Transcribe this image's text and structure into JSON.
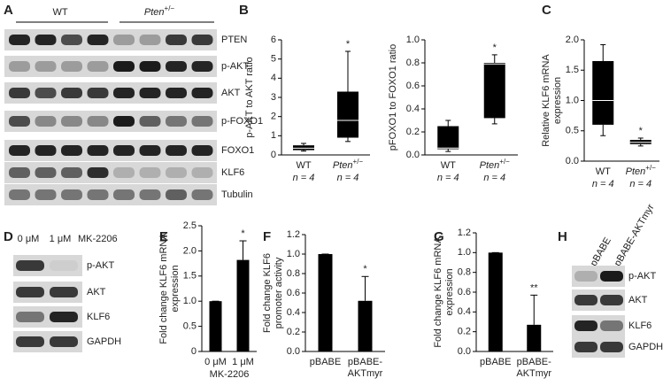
{
  "blots": [
    {
      "label": "A",
      "groups": [
        "WT",
        "Pten+/−"
      ],
      "rows": [
        "PTEN",
        "p-AKT",
        "AKT",
        "p-FOXO1",
        "FOXO1",
        "KLF6",
        "Tubulin"
      ]
    },
    {
      "label": "D",
      "groups": [
        "0 μM",
        "1 μM"
      ],
      "treatment": "MK-2206",
      "rows": [
        "p-AKT",
        "AKT",
        "KLF6",
        "GAPDH"
      ]
    },
    {
      "label": "H",
      "groups": [
        "pBABE",
        "pBABE-AKTmyr"
      ],
      "rows": [
        "p-AKT",
        "AKT",
        "KLF6",
        "GAPDH"
      ]
    }
  ],
  "chart_data": [
    {
      "type": "box",
      "label": "B",
      "ylabel": [
        "p-AKT to AKT ratio"
      ],
      "categories": [
        "WT",
        "Pten+/−"
      ],
      "n_labels": [
        "n = 4",
        "n = 4"
      ],
      "boxes": [
        {
          "min": 0.2,
          "q1": 0.25,
          "median": 0.35,
          "q3": 0.5,
          "max": 0.6
        },
        {
          "min": 0.7,
          "q1": 0.9,
          "median": 1.8,
          "q3": 3.3,
          "max": 5.4
        }
      ],
      "ylim": [
        0,
        6
      ],
      "yticks": [
        0,
        1,
        2,
        3,
        4,
        5,
        6
      ],
      "annotations": [
        {
          "category": "Pten+/−",
          "text": "*"
        }
      ],
      "color": "#000000"
    },
    {
      "type": "box",
      "ylabel": [
        "pFOXO1 to FOXO1 ratio"
      ],
      "categories": [
        "WT",
        "Pten+/−"
      ],
      "n_labels": [
        "n = 4",
        "n = 4"
      ],
      "boxes": [
        {
          "min": 0.03,
          "q1": 0.05,
          "median": 0.06,
          "q3": 0.25,
          "max": 0.3
        },
        {
          "min": 0.27,
          "q1": 0.32,
          "median": 0.79,
          "q3": 0.8,
          "max": 0.87
        }
      ],
      "ylim": [
        0,
        1
      ],
      "yticks": [
        {
          "value": 0,
          "label": "0.0"
        },
        0.2,
        0.4,
        0.6,
        0.8,
        {
          "value": 1,
          "label": "1.0"
        }
      ],
      "annotations": [
        {
          "category": "Pten+/−",
          "text": "*"
        }
      ],
      "color": "#000000"
    },
    {
      "type": "box",
      "label": "C",
      "ylabel": [
        "Relative KLF6 mRNA",
        "expression"
      ],
      "categories": [
        "WT",
        "Pten+/−"
      ],
      "n_labels": [
        "n = 4",
        "n = 4"
      ],
      "boxes": [
        {
          "min": 0.42,
          "q1": 0.6,
          "median": 1.0,
          "q3": 1.65,
          "max": 1.92
        },
        {
          "min": 0.25,
          "q1": 0.28,
          "median": 0.31,
          "q3": 0.35,
          "max": 0.38
        }
      ],
      "ylim": [
        0,
        2
      ],
      "yticks": [
        {
          "value": 0,
          "label": "0.0"
        },
        0.5,
        {
          "value": 1,
          "label": "1.0"
        },
        1.5,
        {
          "value": 2,
          "label": "2.0"
        }
      ],
      "annotations": [
        {
          "category": "Pten+/−",
          "text": "*"
        }
      ],
      "color": "#000000"
    },
    {
      "type": "bar",
      "label": "E",
      "ylabel": [
        "Fold change KLF6 mRNA",
        "expression"
      ],
      "xlabel": "MK-2206",
      "categories": [
        "0 μM",
        "1 μM"
      ],
      "values": [
        1,
        1.82
      ],
      "errors": [
        0,
        0.38
      ],
      "ylim": [
        0,
        2.5
      ],
      "yticks": [
        0,
        0.5,
        {
          "value": 1,
          "label": "1.0"
        },
        1.5,
        {
          "value": 2,
          "label": "2.0"
        },
        2.5
      ],
      "annotations": [
        {
          "category": "1 μM",
          "text": "*"
        }
      ],
      "color": "#000000"
    },
    {
      "type": "bar",
      "label": "F",
      "ylabel": [
        "Fold change KLF6",
        "promoter activity"
      ],
      "categories": [
        "pBABE",
        "pBABE-AKTmyr"
      ],
      "values": [
        1,
        0.52
      ],
      "errors": [
        0,
        0.25
      ],
      "ylim": [
        0,
        1.2
      ],
      "yticks": [
        {
          "value": 0,
          "label": "0.0"
        },
        0.2,
        0.4,
        0.6,
        0.8,
        {
          "value": 1,
          "label": "1.0"
        },
        1.2
      ],
      "annotations": [
        {
          "category": "pBABE-AKTmyr",
          "text": "*"
        }
      ],
      "color": "#000000"
    },
    {
      "type": "bar",
      "label": "G",
      "ylabel": [
        "Fold change KLF6 mRNA",
        "expression"
      ],
      "categories": [
        "pBABE",
        "pBABE-AKTmyr"
      ],
      "values": [
        1,
        0.27
      ],
      "errors": [
        0,
        0.3
      ],
      "ylim": [
        0,
        1.2
      ],
      "yticks": [
        {
          "value": 0,
          "label": "0.0"
        },
        0.2,
        0.4,
        0.6,
        0.8,
        {
          "value": 1,
          "label": "1.0"
        },
        1.2
      ],
      "annotations": [
        {
          "category": "pBABE-AKTmyr",
          "text": "**"
        }
      ],
      "color": "#000000"
    }
  ]
}
